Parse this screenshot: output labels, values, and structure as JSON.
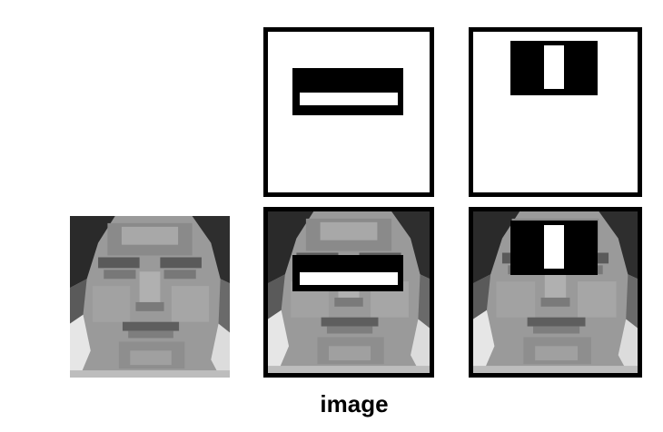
{
  "caption": "image",
  "colors": {
    "border": "#000000",
    "background": "#ffffff"
  },
  "tiles": [
    "haar-feature-two-rect-horizontal",
    "haar-feature-three-rect-vertical",
    "face-image",
    "face-with-horizontal-feature",
    "face-with-vertical-feature"
  ]
}
